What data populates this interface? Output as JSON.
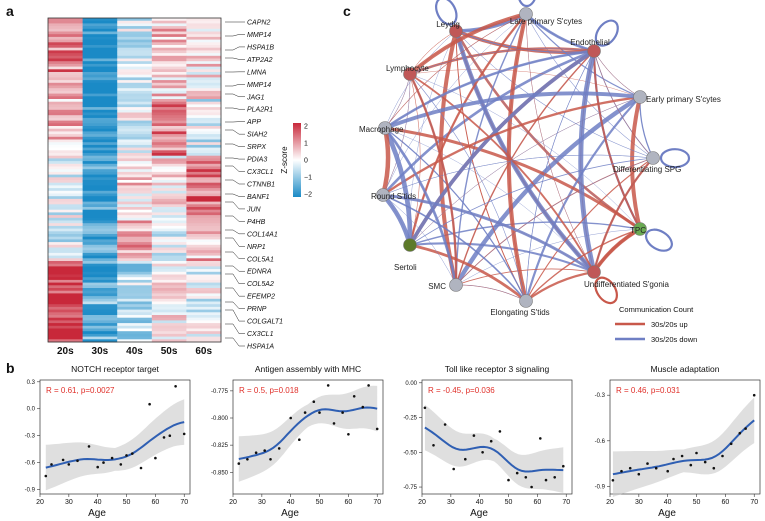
{
  "panels": {
    "a": "a",
    "b": "b",
    "c": "c"
  },
  "heatmap": {
    "columns": [
      "20s",
      "30s",
      "40s",
      "50s",
      "60s"
    ],
    "genes": [
      "CAPN2",
      "MMP14",
      "HSPA1B",
      "ATP2A2",
      "LMNA",
      "MMP14",
      "JAG1",
      "PLA2R1",
      "APP",
      "SIAH2",
      "SRPX",
      "PDIA3",
      "CX3CL1",
      "CTNNB1",
      "BANF1",
      "JUN",
      "P4HB",
      "COL14A1",
      "NRP1",
      "COL5A1",
      "EDNRA",
      "COL5A2",
      "EFEMP2",
      "PRNP",
      "COLGALT1",
      "CX3CL1",
      "HSPA1A"
    ],
    "colorbar": {
      "title": "Z-score",
      "ticks": [
        "2",
        "1",
        "0",
        "−1",
        "−2"
      ],
      "colors": {
        "high": "#c8283a",
        "mid": "#ffffff",
        "low": "#1a8ac6"
      }
    }
  },
  "network": {
    "nodes": [
      {
        "name": "Leydig",
        "color": "#c05858"
      },
      {
        "name": "Late primary S'cytes",
        "color": "#b0b4c0"
      },
      {
        "name": "Endothelial",
        "color": "#c05858"
      },
      {
        "name": "Early primary S'cytes",
        "color": "#b0b4c0"
      },
      {
        "name": "Differentiating SPG",
        "color": "#b0b4c0"
      },
      {
        "name": "TPC",
        "color": "#6aaa52"
      },
      {
        "name": "Undifferentiated S'gonia",
        "color": "#c05858"
      },
      {
        "name": "Elongating S'tids",
        "color": "#b0b4c0"
      },
      {
        "name": "SMC",
        "color": "#b0b4c0"
      },
      {
        "name": "Sertoli",
        "color": "#5d7a2a"
      },
      {
        "name": "Round S'tids",
        "color": "#b0b4c0"
      },
      {
        "name": "Macrophage",
        "color": "#b0b4c0"
      },
      {
        "name": "Lymphocyte",
        "color": "#c05858"
      }
    ],
    "legend": {
      "title": "Communication Count",
      "up": "30s/20s up",
      "down": "30s/20s down",
      "up_color": "#c8584a",
      "down_color": "#6f7fc4"
    }
  },
  "chart_data": [
    {
      "type": "scatter",
      "title": "NOTCH receptor target",
      "xlabel": "Age",
      "ylabel": "",
      "stat": "R = 0.61, p=0.0027",
      "x": [
        22,
        24,
        28,
        30,
        33,
        37,
        40,
        42,
        45,
        48,
        50,
        52,
        55,
        58,
        60,
        63,
        65,
        67,
        70
      ],
      "y": [
        -0.75,
        -0.62,
        -0.57,
        -0.62,
        -0.58,
        -0.42,
        -0.65,
        -0.6,
        -0.55,
        -0.62,
        -0.52,
        -0.5,
        -0.66,
        0.05,
        -0.55,
        -0.32,
        -0.3,
        0.25,
        -0.28
      ],
      "xlim": [
        20,
        72
      ],
      "ylim": [
        -0.95,
        0.32
      ],
      "xticks": [
        20,
        30,
        40,
        50,
        60,
        70
      ],
      "yticks": [
        0.3,
        0,
        -0.3,
        -0.6,
        -0.9
      ],
      "ytick_labels": [
        "0.3",
        "0.0",
        "-0.3",
        "-0.6",
        "-0.9"
      ]
    },
    {
      "type": "scatter",
      "title": "Antigen assembly with MHC",
      "xlabel": "Age",
      "ylabel": "",
      "stat": "R = 0.5, p=0.018",
      "x": [
        22,
        25,
        28,
        31,
        33,
        36,
        40,
        43,
        45,
        48,
        50,
        53,
        55,
        58,
        60,
        62,
        65,
        67,
        70
      ],
      "y": [
        -0.842,
        -0.838,
        -0.832,
        -0.83,
        -0.838,
        -0.828,
        -0.8,
        -0.82,
        -0.795,
        -0.785,
        -0.795,
        -0.77,
        -0.805,
        -0.795,
        -0.815,
        -0.78,
        -0.79,
        -0.77,
        -0.81
      ],
      "xlim": [
        20,
        72
      ],
      "ylim": [
        -0.87,
        -0.765
      ],
      "xticks": [
        20,
        30,
        40,
        50,
        60,
        70
      ],
      "yticks": [
        -0.775,
        -0.8,
        -0.825,
        -0.85
      ],
      "ytick_labels": [
        "-0.775",
        "-0.800",
        "-0.825",
        "-0.850"
      ]
    },
    {
      "type": "scatter",
      "title": "Toll like receptor 3 signaling",
      "xlabel": "Age",
      "ylabel": "",
      "stat": "R = -0.45, p=0.036",
      "x": [
        21,
        24,
        28,
        31,
        35,
        38,
        41,
        44,
        47,
        50,
        53,
        56,
        58,
        61,
        63,
        66,
        69
      ],
      "y": [
        -0.18,
        -0.45,
        -0.3,
        -0.62,
        -0.55,
        -0.38,
        -0.5,
        -0.42,
        -0.35,
        -0.7,
        -0.65,
        -0.68,
        -0.75,
        -0.4,
        -0.7,
        -0.68,
        -0.6
      ],
      "xlim": [
        20,
        72
      ],
      "ylim": [
        -0.8,
        0.02
      ],
      "xticks": [
        20,
        30,
        40,
        50,
        60,
        70
      ],
      "yticks": [
        0,
        -0.25,
        -0.5,
        -0.75
      ],
      "ytick_labels": [
        "0.00",
        "-0.25",
        "-0.50",
        "-0.75"
      ]
    },
    {
      "type": "scatter",
      "title": "Muscle adaptation",
      "xlabel": "Age",
      "ylabel": "",
      "stat": "R = 0.46, p=0.031",
      "x": [
        21,
        24,
        27,
        30,
        33,
        36,
        40,
        42,
        45,
        48,
        50,
        53,
        56,
        59,
        62,
        65,
        67,
        70
      ],
      "y": [
        -0.86,
        -0.8,
        -0.78,
        -0.82,
        -0.75,
        -0.78,
        -0.8,
        -0.72,
        -0.7,
        -0.76,
        -0.68,
        -0.74,
        -0.78,
        -0.7,
        -0.62,
        -0.55,
        -0.52,
        -0.3
      ],
      "xlim": [
        20,
        72
      ],
      "ylim": [
        -0.95,
        -0.2
      ],
      "xticks": [
        20,
        30,
        40,
        50,
        60,
        70
      ],
      "yticks": [
        -0.3,
        -0.6,
        -0.9
      ],
      "ytick_labels": [
        "-0.3",
        "-0.6",
        "-0.9"
      ]
    }
  ]
}
